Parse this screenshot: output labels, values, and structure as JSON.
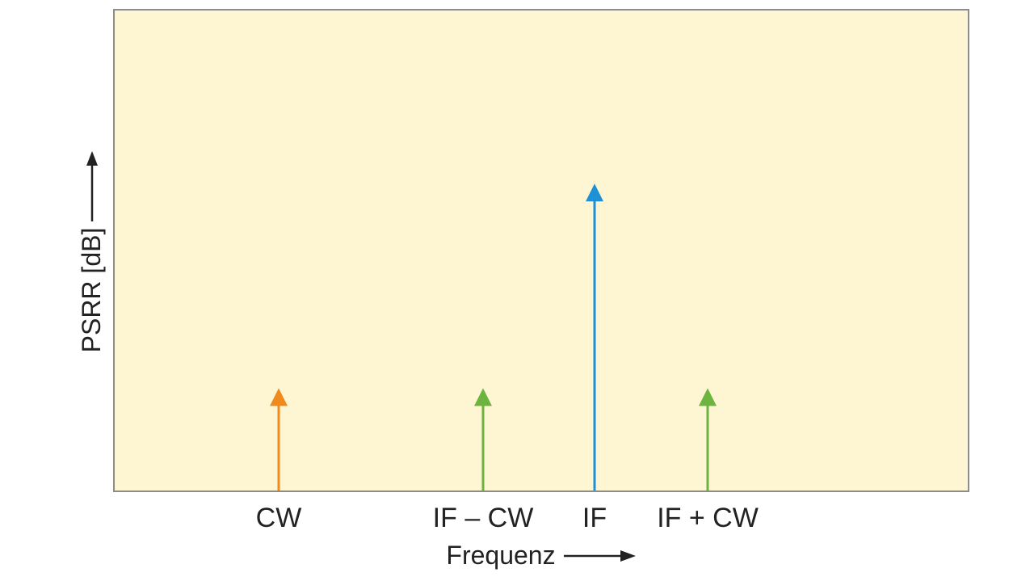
{
  "chart_data": {
    "type": "bar",
    "categories": [
      "CW",
      "IF – CW",
      "IF",
      "IF + CW"
    ],
    "values": [
      1,
      1,
      3,
      1
    ],
    "colors": [
      "#EF8A1F",
      "#6DB33F",
      "#1E90D6",
      "#6DB33F"
    ],
    "xlabel": "Frequenz",
    "ylabel": "PSRR [dB]",
    "ylim": [
      0,
      4.7
    ],
    "grid": false,
    "legend": "none",
    "plot_background": "#FEF6D3",
    "plot_border": "#8C8C8C"
  }
}
